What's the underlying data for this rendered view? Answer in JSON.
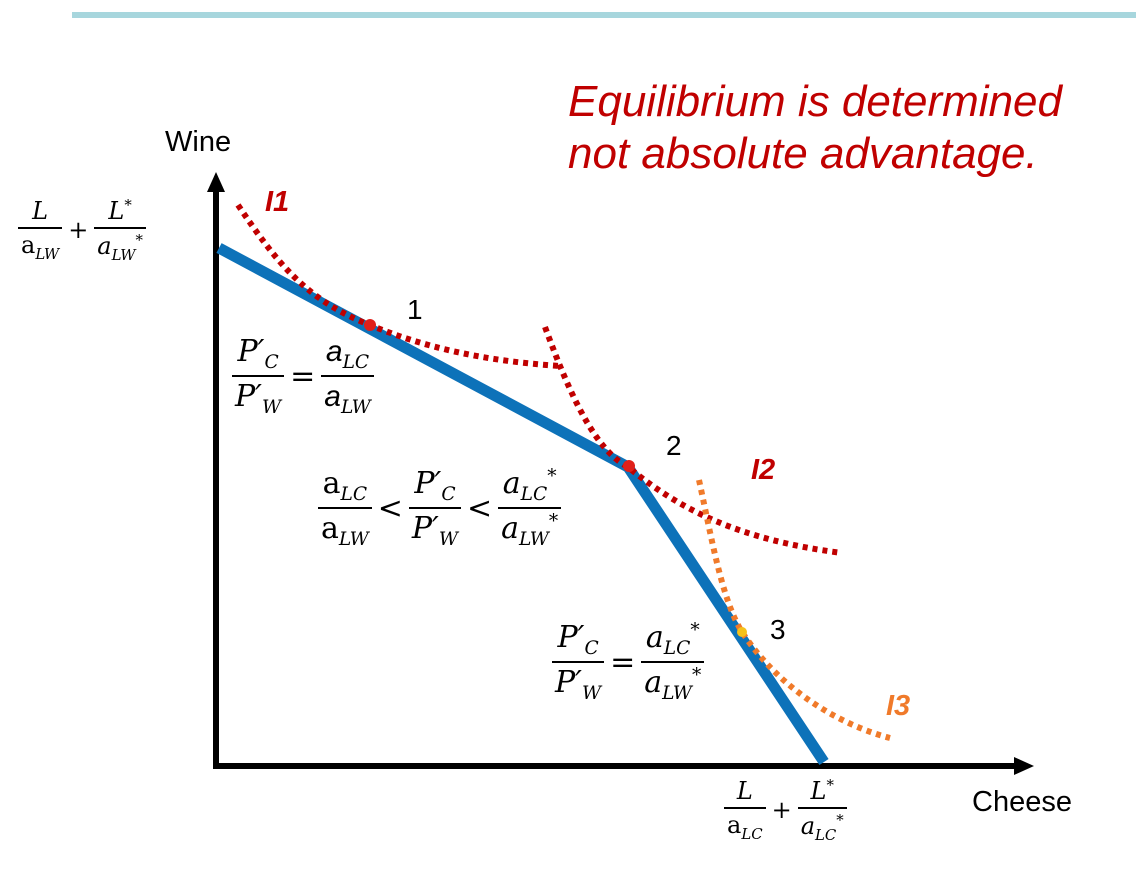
{
  "note": {
    "line1": "Equilibrium is determined",
    "line2": "not absolute advantage.",
    "color": "#c00000"
  },
  "axes": {
    "y_label": "Wine",
    "x_label": "Cheese"
  },
  "points": [
    "1",
    "2",
    "3"
  ],
  "curves": [
    {
      "label": "I1",
      "color": "#c00000"
    },
    {
      "label": "I2",
      "color": "#c00000"
    },
    {
      "label": "I3",
      "color": "#f07a2a"
    }
  ],
  "ppf_color": "#0d72b9",
  "math": {
    "L": "L",
    "Lstar": "L*",
    "aLW": "aLW",
    "aLC": "aLC",
    "aLWstar": "a*LW",
    "aLCstar": "a*LC",
    "PC": "P′C",
    "PW": "P′W"
  }
}
